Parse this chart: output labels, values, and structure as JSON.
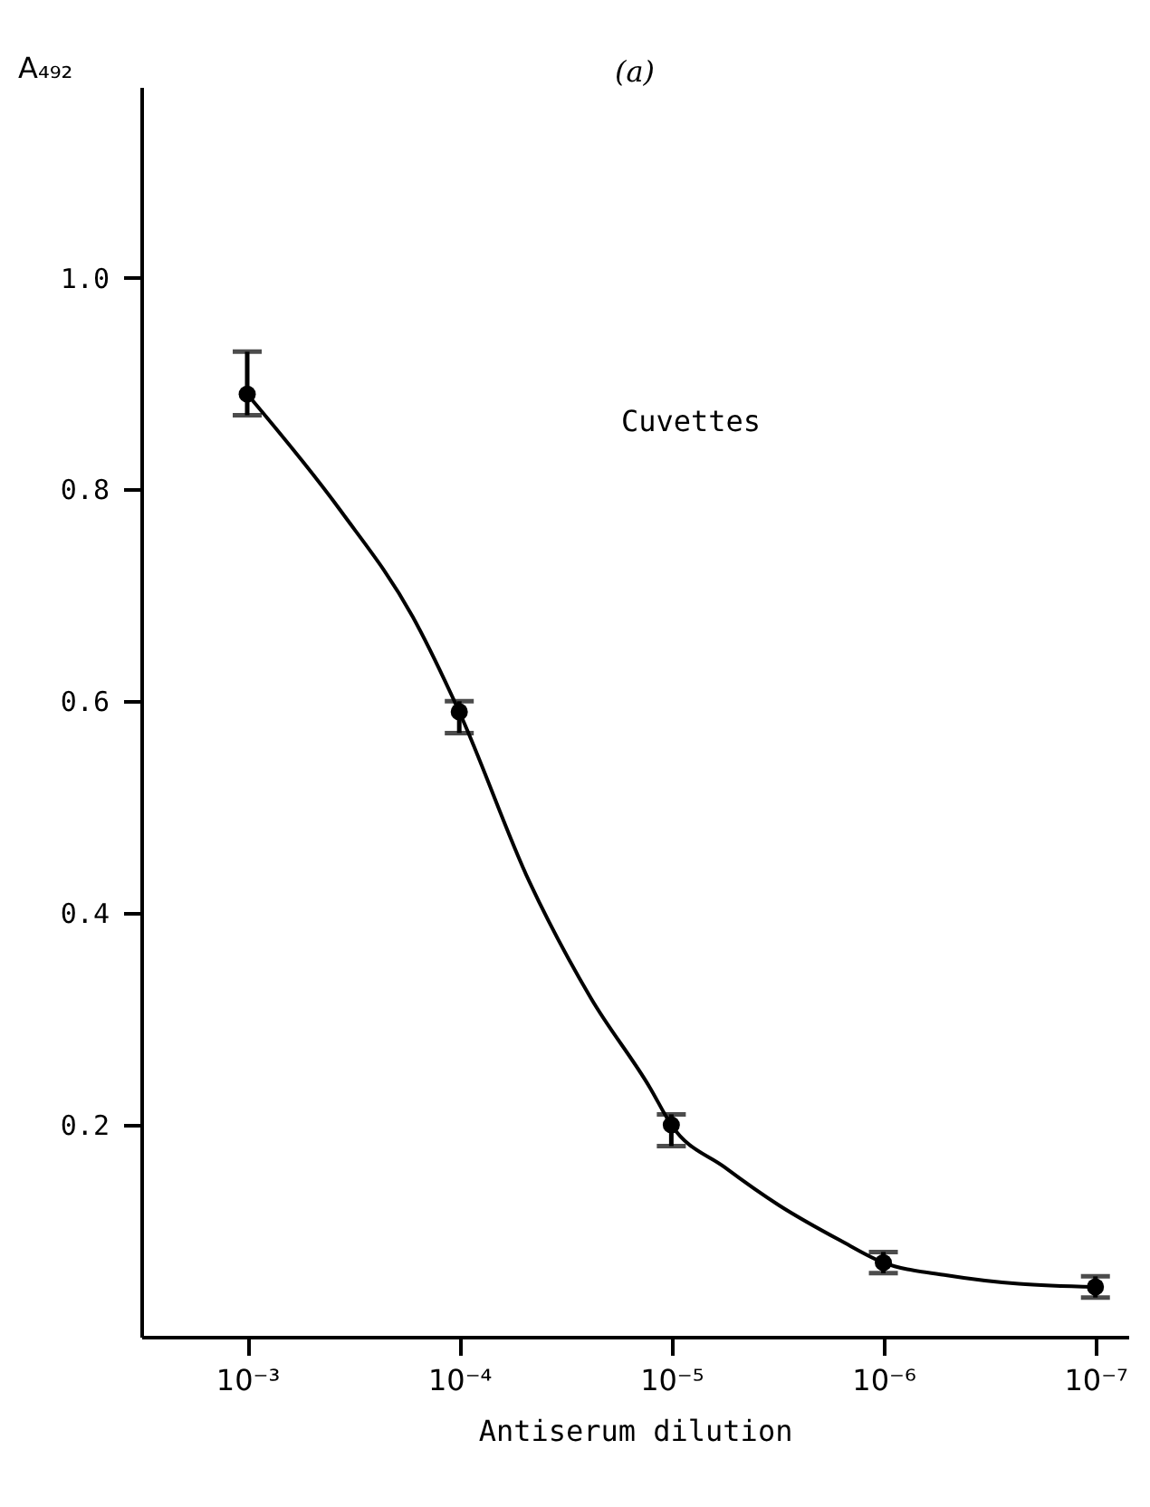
{
  "chart_data": {
    "type": "scatter",
    "title": "(a)",
    "xlabel": "Antiserum dilution",
    "ylabel": "A₄₉₂",
    "annotations": [
      "Cuvettes"
    ],
    "log": "x",
    "xlim": [
      0.00316,
      7e-08
    ],
    "xticks": [
      {
        "value": 0.001,
        "label": "10⁻³"
      },
      {
        "value": 0.0001,
        "label": "10⁻⁴"
      },
      {
        "value": 1e-05,
        "label": "10⁻⁵"
      },
      {
        "value": 1e-06,
        "label": "10⁻⁶"
      },
      {
        "value": 1e-07,
        "label": "10⁻⁷"
      }
    ],
    "ylim": [
      0,
      1.18
    ],
    "yticks": [
      {
        "value": 0.2,
        "label": "0.2"
      },
      {
        "value": 0.4,
        "label": "0.4"
      },
      {
        "value": 0.6,
        "label": "0.6"
      },
      {
        "value": 0.8,
        "label": "0.8"
      },
      {
        "value": 1.0,
        "label": "1.0"
      }
    ],
    "grid": false,
    "marker": "circle",
    "series": [
      {
        "color": "#000000",
        "x": [
          0.001,
          0.0001,
          1e-05,
          1e-06,
          1e-07
        ],
        "values": [
          0.89,
          0.59,
          0.2,
          0.07,
          0.047
        ],
        "errors": [
          [
            0.87,
            0.93
          ],
          [
            0.57,
            0.6
          ],
          [
            0.18,
            0.21
          ],
          [
            0.06,
            0.08
          ],
          [
            0.037,
            0.057
          ]
        ]
      },
      {
        "type": "line",
        "color": "#000000",
        "line_style": "solid",
        "marker": "none",
        "x": [
          0.001,
          0.000363,
          0.000166,
          0.0001,
          4.68e-05,
          2.4e-05,
          1.26e-05,
          1e-05,
          5.6e-06,
          3.1e-06,
          1.6e-06,
          1e-06,
          5e-07,
          2.3e-07,
          1e-07
        ],
        "values": [
          0.89,
          0.78,
          0.68,
          0.59,
          0.43,
          0.32,
          0.235,
          0.2,
          0.16,
          0.124,
          0.091,
          0.07,
          0.058,
          0.05,
          0.047
        ]
      }
    ]
  }
}
